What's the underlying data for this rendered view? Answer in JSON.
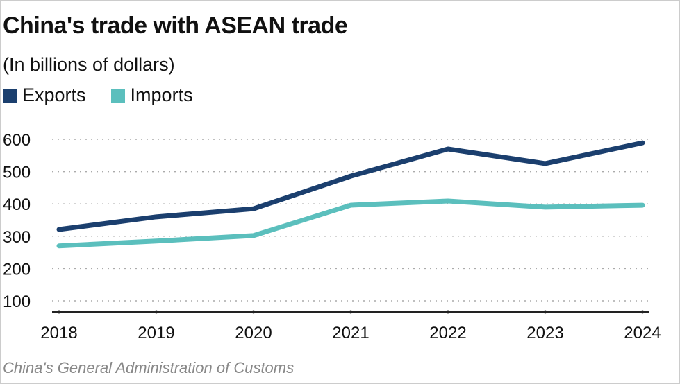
{
  "title": "China's trade with ASEAN trade",
  "subtitle": "(In billions of dollars)",
  "source": "China's General Administration of Customs",
  "colors": {
    "exports": "#1b3f6e",
    "imports": "#5bbfbd"
  },
  "chart_data": {
    "type": "line",
    "title": "China's trade with ASEAN trade",
    "subtitle": "(In billions of dollars)",
    "x": [
      "2018",
      "2019",
      "2020",
      "2021",
      "2022",
      "2023",
      "2024"
    ],
    "yticks": [
      "100",
      "200",
      "300",
      "400",
      "500",
      "600"
    ],
    "ylim": [
      65,
      620
    ],
    "grid": true,
    "legend": "top-left",
    "series": [
      {
        "name": "Exports",
        "color": "#1b3f6e",
        "values": [
          321,
          360,
          385,
          486,
          570,
          525,
          589
        ]
      },
      {
        "name": "Imports",
        "color": "#5bbfbd",
        "values": [
          270,
          285,
          302,
          396,
          409,
          390,
          396
        ]
      }
    ]
  }
}
